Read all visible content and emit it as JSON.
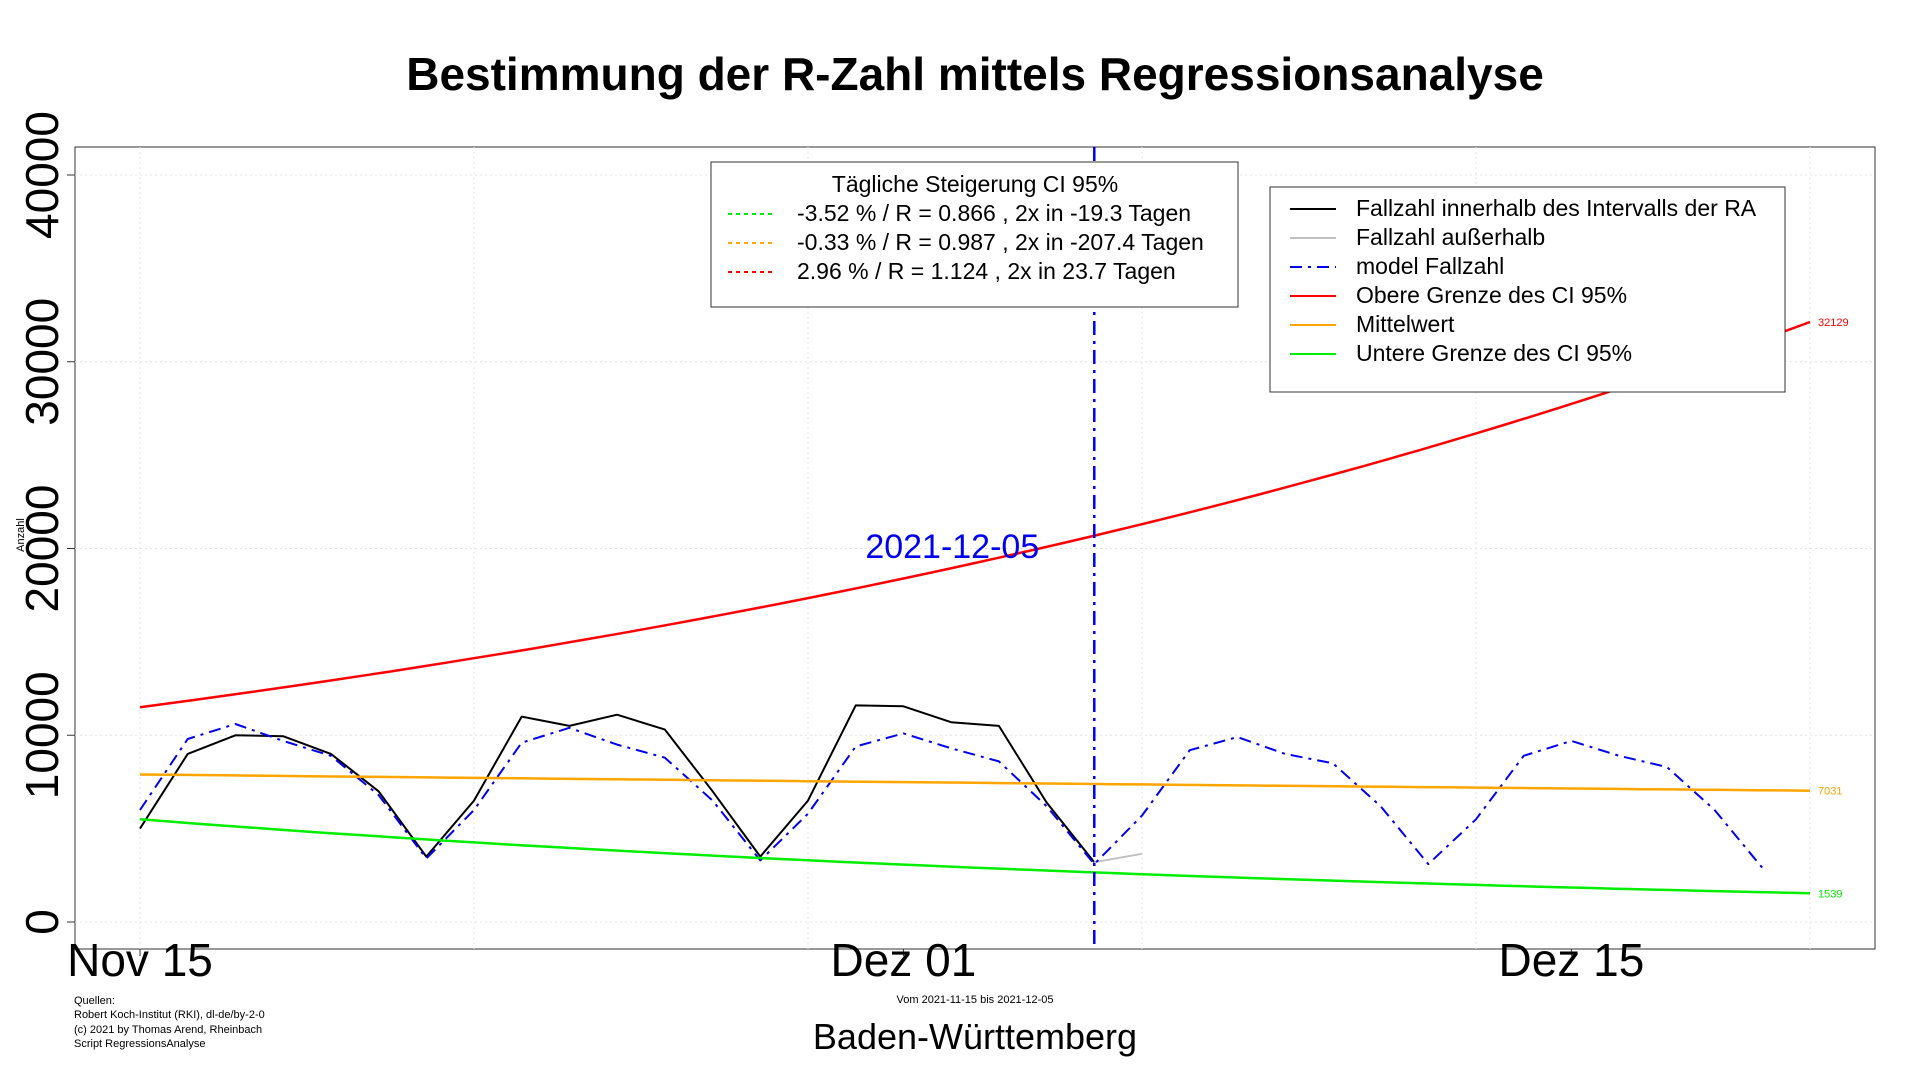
{
  "chart_data": {
    "type": "line",
    "title": "Bestimmung der R-Zahl mittels Regressionsanalyse",
    "xlabel": "Baden-Württemberg",
    "ylabel": "Anzahl",
    "subtitle": "Vom 2021-11-15 bis 2021-12-05",
    "ylim": [
      0,
      40000
    ],
    "xlim": [
      "2021-11-15",
      "2021-12-20"
    ],
    "y_ticks": [
      "0",
      "10000",
      "20000",
      "30000",
      "40000"
    ],
    "x_ticks": [
      {
        "date": "2021-11-15",
        "label": "Nov 15"
      },
      {
        "date": "2021-12-01",
        "label": "Dez 01"
      },
      {
        "date": "2021-12-15",
        "label": "Dez 15"
      }
    ],
    "grid": true,
    "vline": {
      "date": "2021-12-05",
      "label": "2021-12-05",
      "color": "#0000ee"
    },
    "ci_legend": {
      "title": "Tägliche Steigerung CI  95%",
      "placement": "top-center",
      "entries": [
        {
          "text": "-3.52 % / R = 0.866 , 2x in -19.3 Tagen",
          "color": "#00ee00"
        },
        {
          "text": "-0.33 % / R = 0.987 , 2x in -207.4 Tagen",
          "color": "#ffa500"
        },
        {
          "text": "2.96 % / R = 1.124 , 2x in 23.7 Tagen",
          "color": "#ff0000"
        }
      ]
    },
    "legend": {
      "placement": "top-right",
      "entries": [
        {
          "text": "Fallzahl innerhalb des Intervalls der RA",
          "color": "#000000",
          "dash": "solid"
        },
        {
          "text": "Fallzahl außerhalb",
          "color": "#c0c0c0",
          "dash": "solid"
        },
        {
          "text": "model Fallzahl",
          "color": "#0000ee",
          "dash": "dashdot"
        },
        {
          "text": "Obere Grenze des CI 95%",
          "color": "#ff0000",
          "dash": "solid"
        },
        {
          "text": "Mittelwert",
          "color": "#ffa500",
          "dash": "solid"
        },
        {
          "text": "Untere Grenze des CI 95%",
          "color": "#00ee00",
          "dash": "solid"
        }
      ]
    },
    "series": [
      {
        "name": "Fallzahl innerhalb des Intervalls der RA",
        "color": "#000000",
        "dash": "solid",
        "x": [
          "2021-11-15",
          "2021-11-16",
          "2021-11-17",
          "2021-11-18",
          "2021-11-19",
          "2021-11-20",
          "2021-11-21",
          "2021-11-22",
          "2021-11-23",
          "2021-11-24",
          "2021-11-25",
          "2021-11-26",
          "2021-11-27",
          "2021-11-28",
          "2021-11-29",
          "2021-11-30",
          "2021-12-01",
          "2021-12-02",
          "2021-12-03",
          "2021-12-04",
          "2021-12-05"
        ],
        "y": [
          5000,
          9000,
          10000,
          9950,
          9000,
          7000,
          3500,
          6500,
          11000,
          10500,
          11100,
          10300,
          7000,
          3500,
          6500,
          11600,
          11550,
          10700,
          10500,
          6400,
          3200
        ]
      },
      {
        "name": "Fallzahl außerhalb",
        "color": "#c0c0c0",
        "dash": "solid",
        "x": [
          "2021-12-05",
          "2021-12-06"
        ],
        "y": [
          3200,
          3650
        ]
      },
      {
        "name": "model Fallzahl",
        "color": "#0000ee",
        "dash": "dashdot",
        "x": [
          "2021-11-15",
          "2021-11-16",
          "2021-11-17",
          "2021-11-18",
          "2021-11-19",
          "2021-11-20",
          "2021-11-21",
          "2021-11-22",
          "2021-11-23",
          "2021-11-24",
          "2021-11-25",
          "2021-11-26",
          "2021-11-27",
          "2021-11-28",
          "2021-11-29",
          "2021-11-30",
          "2021-12-01",
          "2021-12-02",
          "2021-12-03",
          "2021-12-04",
          "2021-12-05",
          "2021-12-06",
          "2021-12-07",
          "2021-12-08",
          "2021-12-09",
          "2021-12-10",
          "2021-12-11",
          "2021-12-12",
          "2021-12-13",
          "2021-12-14",
          "2021-12-15",
          "2021-12-16",
          "2021-12-17",
          "2021-12-18",
          "2021-12-19"
        ],
        "y": [
          6000,
          9800,
          10600,
          9700,
          8900,
          6800,
          3400,
          6000,
          9600,
          10400,
          9500,
          8800,
          6500,
          3300,
          5800,
          9400,
          10100,
          9300,
          8600,
          6200,
          3100,
          5700,
          9200,
          9900,
          9000,
          8500,
          6200,
          3100,
          5500,
          8900,
          9700,
          8900,
          8300,
          6000,
          2900
        ]
      },
      {
        "name": "Obere Grenze des CI 95%",
        "color": "#ff0000",
        "dash": "solid",
        "growth": "exponential",
        "x": [
          "2021-11-15",
          "2021-12-20"
        ],
        "y": [
          11500,
          32129
        ]
      },
      {
        "name": "Mittelwert",
        "color": "#ffa500",
        "dash": "solid",
        "growth": "exponential",
        "x": [
          "2021-11-15",
          "2021-12-20"
        ],
        "y": [
          7900,
          7031
        ]
      },
      {
        "name": "Untere Grenze des CI 95%",
        "color": "#00ee00",
        "dash": "solid",
        "growth": "exponential",
        "x": [
          "2021-11-15",
          "2021-12-20"
        ],
        "y": [
          5500,
          1539
        ]
      }
    ],
    "end_labels": [
      {
        "value": "32129",
        "color": "#ff0000"
      },
      {
        "value": "7031",
        "color": "#ffa500"
      },
      {
        "value": "1539",
        "color": "#00ee00"
      }
    ]
  },
  "sources": [
    "Quellen:",
    "Robert Koch-Institut (RKI), dl-de/by-2-0",
    "(c) 2021 by Thomas Arend, Rheinbach",
    "Script RegressionsAnalyse"
  ]
}
